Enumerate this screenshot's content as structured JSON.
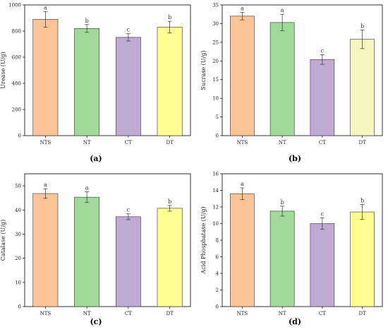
{
  "chart_data": [
    {
      "type": "bar",
      "panel_label": "(a)",
      "categories": [
        "NTS",
        "NT",
        "CT",
        "DT"
      ],
      "values": [
        890,
        820,
        752,
        830
      ],
      "errors": [
        60,
        30,
        28,
        45
      ],
      "significance": [
        "a",
        "b",
        "c",
        "b"
      ],
      "ylabel": "Urease (U/g)",
      "ylim": [
        0,
        1000
      ],
      "yticks": [
        0,
        200,
        400,
        600,
        800,
        1000
      ],
      "colors": [
        "#FBC497",
        "#A0DA9A",
        "#BFAAD4",
        "#FDFD90"
      ]
    },
    {
      "type": "bar",
      "panel_label": "(b)",
      "categories": [
        "NTS",
        "NT",
        "CT",
        "DT"
      ],
      "values": [
        32.0,
        30.3,
        20.4,
        25.8
      ],
      "errors": [
        1.0,
        2.2,
        1.3,
        2.5
      ],
      "significance": [
        "a",
        "a",
        "c",
        "b"
      ],
      "ylabel": "Sucrase (U/g)",
      "ylim": [
        0,
        35
      ],
      "yticks": [
        0,
        5,
        10,
        15,
        20,
        25,
        30,
        35
      ],
      "colors": [
        "#FBC497",
        "#A0DA9A",
        "#BFAAD4",
        "#F7F4BE"
      ]
    },
    {
      "type": "bar",
      "panel_label": "(c)",
      "categories": [
        "NTS",
        "NT",
        "CT",
        "DT"
      ],
      "values": [
        46.8,
        45.3,
        37.2,
        40.7
      ],
      "errors": [
        2.0,
        2.2,
        1.2,
        1.2
      ],
      "significance": [
        "a",
        "a",
        "c",
        "b"
      ],
      "ylabel": "Catalase (U/g)",
      "ylim": [
        0,
        55
      ],
      "yticks": [
        0,
        10,
        20,
        30,
        40,
        50
      ],
      "colors": [
        "#FBC497",
        "#A0DA9A",
        "#BFAAD4",
        "#FDFD90"
      ]
    },
    {
      "type": "bar",
      "panel_label": "(d)",
      "categories": [
        "NTS",
        "NT",
        "CT",
        "DT"
      ],
      "values": [
        13.6,
        11.5,
        10.0,
        11.4
      ],
      "errors": [
        0.7,
        0.6,
        0.7,
        0.9
      ],
      "significance": [
        "a",
        "b",
        "c",
        "b"
      ],
      "ylabel": "Acid Phosphatase (U/g)",
      "ylim": [
        0,
        16
      ],
      "yticks": [
        0,
        2,
        4,
        6,
        8,
        10,
        12,
        14,
        16
      ],
      "colors": [
        "#FBC497",
        "#A0DA9A",
        "#BFAAD4",
        "#FDFD90"
      ]
    }
  ]
}
